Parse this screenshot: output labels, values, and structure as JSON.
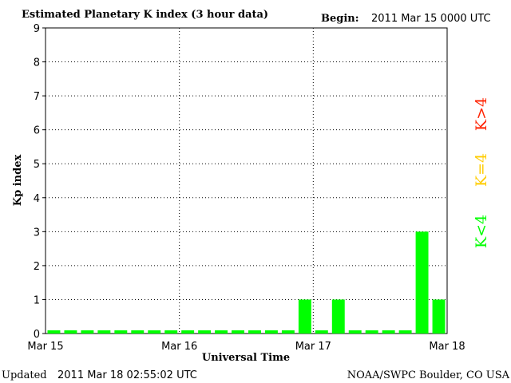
{
  "chart_data": {
    "type": "bar",
    "title": "Estimated Planetary K index (3 hour data)",
    "begin_label": "Begin:",
    "begin": "2011 Mar 15 0000 UTC",
    "ylabel": "Kp index",
    "xlabel": "Universal Time",
    "updated_label": "Updated",
    "updated": "2011 Mar 18 02:55:02 UTC",
    "credit": "NOAA/SWPC Boulder, CO USA",
    "categories": [
      null,
      null,
      null,
      null,
      null,
      null,
      null,
      null,
      null,
      null,
      null,
      null,
      null,
      null,
      null,
      null,
      null,
      null,
      null,
      null,
      null,
      null,
      null,
      null
    ],
    "values": [
      0,
      0,
      0,
      0,
      0,
      0,
      0,
      0,
      0,
      0,
      0,
      0,
      0,
      0,
      0,
      1,
      0,
      1,
      0,
      0,
      0,
      0,
      3,
      1
    ],
    "color": "#00ff00",
    "day_labels": [
      "Mar 15",
      "Mar 16",
      "Mar 17",
      "Mar 18"
    ],
    "ylim": [
      0,
      9
    ],
    "yticks": [
      0,
      1,
      2,
      3,
      4,
      5,
      6,
      7,
      8,
      9
    ],
    "grid": true,
    "legend": [
      {
        "label": "K<4",
        "color": "#00ff00"
      },
      {
        "label": "K=4",
        "color": "#ffcc00"
      },
      {
        "label": "K>4",
        "color": "#ff2200"
      }
    ]
  }
}
